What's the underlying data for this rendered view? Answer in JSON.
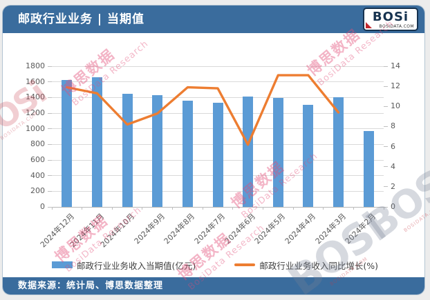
{
  "colors": {
    "brand_blue": "#3a6c9d",
    "bar_blue": "#5b9bd5",
    "line_orange": "#ed7d31",
    "axis_text": "#595959",
    "gridline": "#d9d9d9"
  },
  "header": {
    "title": "邮政行业业务 | 当期值",
    "logo": {
      "text": "BOSi",
      "caption": "BOSIDATA.COM"
    }
  },
  "footer": {
    "source": "数据来源：统计局、博思数据整理"
  },
  "watermark": {
    "cn": "博思数据",
    "en": "BosiData Research",
    "logo_text": "BOSi",
    "logo_caption": "BOSIDATA.COM"
  },
  "chart_data": {
    "type": "bar",
    "subtype": "bar+line combo, dual axis",
    "categories": [
      "2024年12月",
      "2024年11月",
      "2024年10月",
      "2024年9月",
      "2024年8月",
      "2024年7月",
      "2024年6月",
      "2024年5月",
      "2024年4月",
      "2024年3月",
      "2024年2月"
    ],
    "series": [
      {
        "name": "邮政行业业务收入当期值(亿元)",
        "type": "bar",
        "axis": "left",
        "color": "#5b9bd5",
        "values": [
          1620,
          1655,
          1445,
          1430,
          1360,
          1330,
          1410,
          1390,
          1310,
          1400,
          970
        ]
      },
      {
        "name": "邮政行业业务收入同比增长(%)",
        "type": "line",
        "axis": "right",
        "color": "#ed7d31",
        "values": [
          11.9,
          11.3,
          8.2,
          9.3,
          11.9,
          11.8,
          6.2,
          13.1,
          13.1,
          9.4,
          null
        ]
      }
    ],
    "left_axis": {
      "min": 0,
      "max": 1800,
      "step": 200
    },
    "right_axis": {
      "min": 0,
      "max": 14,
      "step": 2
    },
    "grid": true,
    "legend_position": "bottom"
  }
}
